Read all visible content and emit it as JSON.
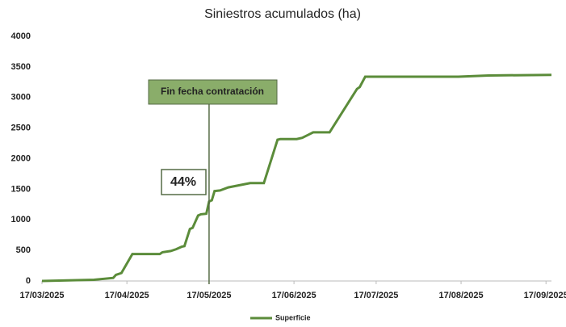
{
  "chart_data": {
    "type": "line",
    "title": "Siniestros acumulados (ha)",
    "x": [
      "17/03/2025",
      "05/04/2025",
      "12/04/2025",
      "13/04/2025",
      "15/04/2025",
      "19/04/2025",
      "29/04/2025",
      "30/04/2025",
      "03/05/2025",
      "05/05/2025",
      "07/05/2025",
      "08/05/2025",
      "10/05/2025",
      "11/05/2025",
      "13/05/2025",
      "14/05/2025",
      "16/05/2025",
      "17/05/2025",
      "18/05/2025",
      "19/05/2025",
      "21/05/2025",
      "24/05/2025",
      "01/06/2025",
      "06/06/2025",
      "11/06/2025",
      "12/06/2025",
      "18/06/2025",
      "20/06/2025",
      "24/06/2025",
      "30/06/2025",
      "10/07/2025",
      "11/07/2025",
      "13/07/2025",
      "16/08/2025",
      "27/08/2025",
      "19/09/2025"
    ],
    "series": [
      {
        "name": "Superficie",
        "color": "#5b8c3a",
        "values": [
          0,
          20,
          50,
          100,
          130,
          440,
          440,
          470,
          490,
          520,
          560,
          570,
          850,
          870,
          1070,
          1090,
          1100,
          1300,
          1320,
          1470,
          1480,
          1530,
          1600,
          1600,
          2310,
          2320,
          2320,
          2340,
          2430,
          2430,
          3140,
          3170,
          3340,
          3340,
          3360,
          3370
        ]
      }
    ],
    "xlim": [
      "17/03/2025",
      "19/09/2025"
    ],
    "xticks": [
      "17/03/2025",
      "17/04/2025",
      "17/05/2025",
      "17/06/2025",
      "17/07/2025",
      "17/08/2025",
      "17/09/2025"
    ],
    "ylim": [
      0,
      4000
    ],
    "yticks": [
      0,
      500,
      1000,
      1500,
      2000,
      2500,
      3000,
      3500,
      4000
    ],
    "annotations": [
      {
        "text": "Fin fecha contratación",
        "x": "17/05/2025"
      },
      {
        "text": "44%"
      }
    ],
    "legend": "bottom"
  }
}
